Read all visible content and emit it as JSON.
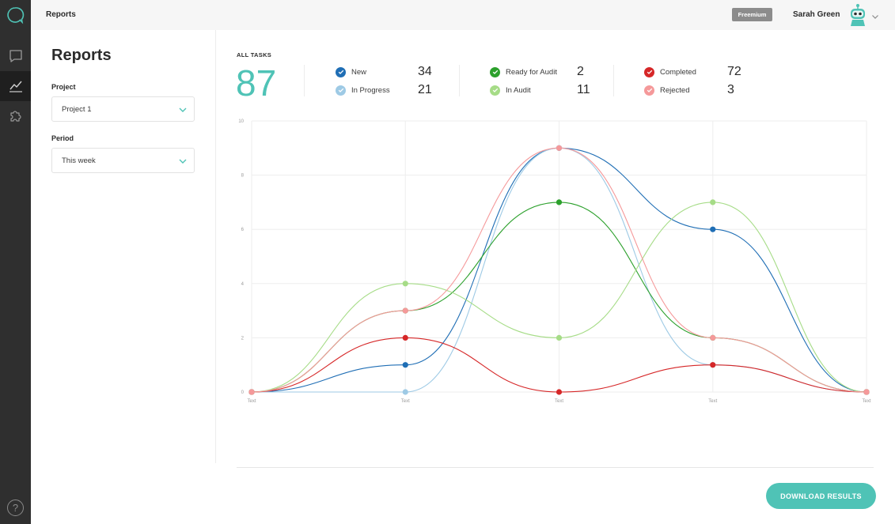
{
  "topbar": {
    "title": "Reports",
    "badge": "Freemium",
    "user_name": "Sarah Green"
  },
  "sidebar": {
    "items": [
      {
        "icon": "chat-bubble-icon",
        "active": false
      },
      {
        "icon": "chart-line-icon",
        "active": true
      },
      {
        "icon": "puzzle-icon",
        "active": false
      }
    ],
    "help": "?"
  },
  "filters": {
    "page_title": "Reports",
    "project_label": "Project",
    "project_value": "Project 1",
    "period_label": "Period",
    "period_value": "This week"
  },
  "summary": {
    "heading": "ALL TASKS",
    "total": "87",
    "stats": [
      {
        "label": "New",
        "count": "34",
        "color": "#1f6eb5"
      },
      {
        "label": "In Progress",
        "count": "21",
        "color": "#9ecae5"
      },
      {
        "label": "Ready for Audit",
        "count": "2",
        "color": "#2ca02c"
      },
      {
        "label": "In Audit",
        "count": "11",
        "color": "#a6dc87"
      },
      {
        "label": "Completed",
        "count": "72",
        "color": "#d62728"
      },
      {
        "label": "Rejected",
        "count": "3",
        "color": "#f5999a"
      }
    ]
  },
  "chart_data": {
    "type": "line",
    "categories": [
      "Text",
      "Text",
      "Text",
      "Text",
      "Text"
    ],
    "ylim": [
      0,
      10
    ],
    "yticks": [
      0,
      2,
      4,
      6,
      8,
      10
    ],
    "grid": true,
    "series": [
      {
        "name": "New",
        "color": "#1f6eb5",
        "values": [
          0,
          1,
          9,
          6,
          0
        ]
      },
      {
        "name": "In Progress",
        "color": "#9ecae5",
        "values": [
          0,
          0,
          9,
          1,
          0
        ]
      },
      {
        "name": "Ready for Audit",
        "color": "#2ca02c",
        "values": [
          0,
          3,
          7,
          2,
          0
        ]
      },
      {
        "name": "In Audit",
        "color": "#a6dc87",
        "values": [
          0,
          4,
          2,
          7,
          0
        ]
      },
      {
        "name": "Completed",
        "color": "#d62728",
        "values": [
          0,
          2,
          0,
          1,
          0
        ]
      },
      {
        "name": "Rejected",
        "color": "#f5999a",
        "values": [
          0,
          3,
          9,
          2,
          0
        ]
      }
    ]
  },
  "actions": {
    "download_label": "DOWNLOAD RESULTS"
  },
  "colors": {
    "accent": "#4fc3b6",
    "sidebar": "#2f2f2f"
  }
}
